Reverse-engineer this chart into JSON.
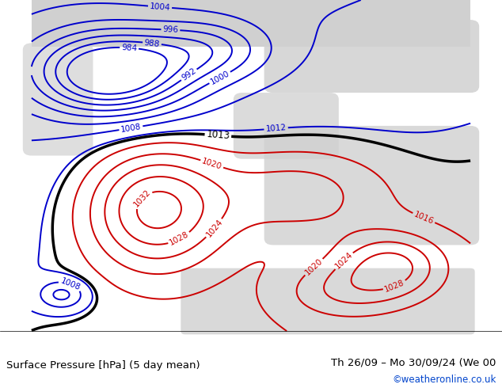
{
  "title_left": "Surface Pressure [hPa] (5 day mean)",
  "title_right": "Th 26/09 – Mo 30/09/24 (We 00",
  "watermark": "©weatheronline.co.uk",
  "bg_color": "#c8e6b4",
  "land_color": "#d8d8d8",
  "blue_color": "#0000cc",
  "black_color": "#000000",
  "red_color": "#cc0000",
  "fig_width": 6.34,
  "fig_height": 4.9,
  "dpi": 100
}
